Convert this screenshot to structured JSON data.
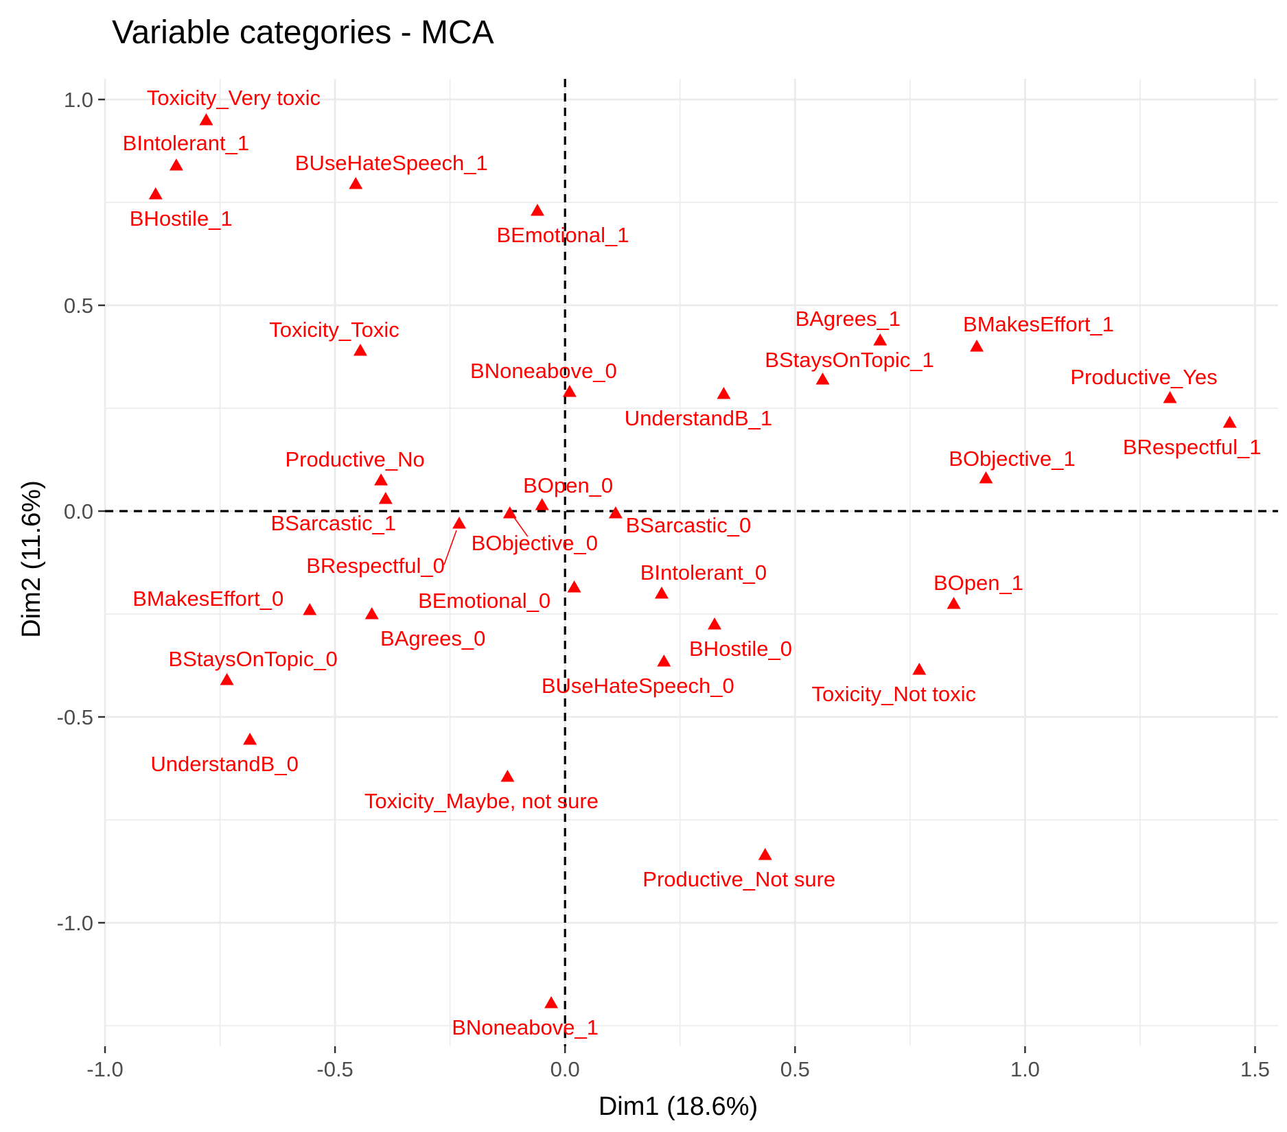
{
  "chart_data": {
    "type": "scatter",
    "title": "Variable categories - MCA",
    "xlabel": "Dim1 (18.6%)",
    "ylabel": "Dim2 (11.6%)",
    "xlim": [
      -1.0,
      1.55
    ],
    "ylim": [
      -1.3,
      1.05
    ],
    "xticks": [
      -1.0,
      -0.5,
      0.0,
      0.5,
      1.0,
      1.5
    ],
    "xtick_labels": [
      "-1.0",
      "-0.5",
      "0.0",
      "0.5",
      "1.0",
      "1.5"
    ],
    "yticks": [
      -1.0,
      -0.5,
      0.0,
      0.5,
      1.0
    ],
    "ytick_labels": [
      "-1.0",
      "-0.5",
      "0.0",
      "0.5",
      "1.0"
    ],
    "grid": true,
    "reference_lines": {
      "x": 0,
      "y": 0,
      "style": "dashed"
    },
    "point_color": "#ff0000",
    "marker": "triangle",
    "points": [
      {
        "label": "Toxicity_Very toxic",
        "x": -0.78,
        "y": 0.95
      },
      {
        "label": "BIntolerant_1",
        "x": -0.845,
        "y": 0.84
      },
      {
        "label": "BHostile_1",
        "x": -0.89,
        "y": 0.77
      },
      {
        "label": "BUseHateSpeech_1",
        "x": -0.455,
        "y": 0.795
      },
      {
        "label": "BEmotional_1",
        "x": -0.06,
        "y": 0.73
      },
      {
        "label": "Toxicity_Toxic",
        "x": -0.445,
        "y": 0.39
      },
      {
        "label": "BNoneabove_0",
        "x": 0.01,
        "y": 0.29
      },
      {
        "label": "UnderstandB_1",
        "x": 0.345,
        "y": 0.285
      },
      {
        "label": "BAgrees_1",
        "x": 0.685,
        "y": 0.415
      },
      {
        "label": "BStaysOnTopic_1",
        "x": 0.56,
        "y": 0.32
      },
      {
        "label": "BMakesEffort_1",
        "x": 0.895,
        "y": 0.4
      },
      {
        "label": "Productive_Yes",
        "x": 1.315,
        "y": 0.275
      },
      {
        "label": "BRespectful_1",
        "x": 1.445,
        "y": 0.215
      },
      {
        "label": "BObjective_1",
        "x": 0.915,
        "y": 0.08
      },
      {
        "label": "Productive_No",
        "x": -0.4,
        "y": 0.075
      },
      {
        "label": "BSarcastic_1",
        "x": -0.39,
        "y": 0.03
      },
      {
        "label": "BOpen_0",
        "x": -0.05,
        "y": 0.015
      },
      {
        "label": "BRespectful_0",
        "x": -0.23,
        "y": -0.03
      },
      {
        "label": "BObjective_0",
        "x": -0.12,
        "y": -0.005
      },
      {
        "label": "BSarcastic_0",
        "x": 0.11,
        "y": -0.005
      },
      {
        "label": "BIntolerant_0",
        "x": 0.21,
        "y": -0.2
      },
      {
        "label": "BEmotional_0",
        "x": 0.02,
        "y": -0.185
      },
      {
        "label": "BMakesEffort_0",
        "x": -0.555,
        "y": -0.24
      },
      {
        "label": "BAgrees_0",
        "x": -0.42,
        "y": -0.25
      },
      {
        "label": "BOpen_1",
        "x": 0.845,
        "y": -0.225
      },
      {
        "label": "BHostile_0",
        "x": 0.325,
        "y": -0.275
      },
      {
        "label": "BUseHateSpeech_0",
        "x": 0.215,
        "y": -0.365
      },
      {
        "label": "Toxicity_Not toxic",
        "x": 0.77,
        "y": -0.385
      },
      {
        "label": "BStaysOnTopic_0",
        "x": -0.735,
        "y": -0.41
      },
      {
        "label": "UnderstandB_0",
        "x": -0.685,
        "y": -0.555
      },
      {
        "label": "Toxicity_Maybe, not sure",
        "x": -0.125,
        "y": -0.645
      },
      {
        "label": "Productive_Not sure",
        "x": 0.435,
        "y": -0.835
      },
      {
        "label": "BNoneabove_1",
        "x": -0.03,
        "y": -1.195
      }
    ]
  }
}
